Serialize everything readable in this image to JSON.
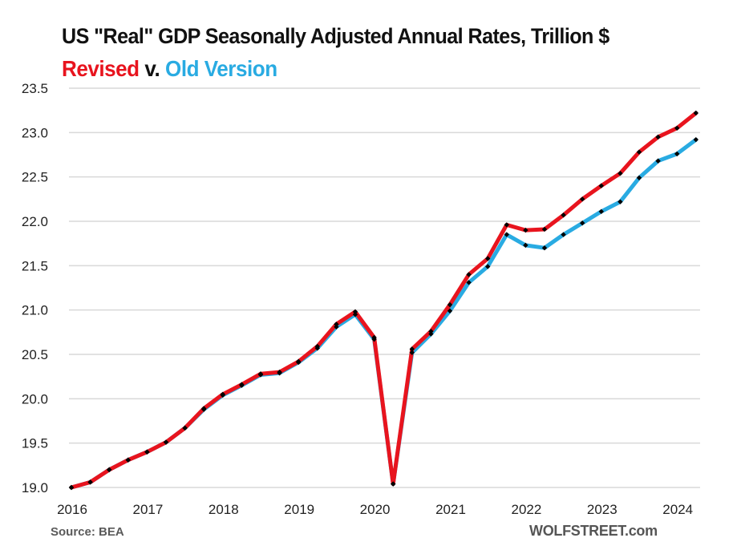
{
  "chart_data": {
    "type": "line",
    "title": "US \"Real\" GDP Seasonally Adjusted Annual Rates, Trillion $",
    "subtitle": {
      "revised": "Revised",
      "connector": "v.",
      "old": "Old Version"
    },
    "xlabel": "",
    "ylabel": "",
    "ylim": [
      19.0,
      23.5
    ],
    "yticks": [
      "23.5",
      "23.0",
      "22.5",
      "22.0",
      "21.5",
      "21.0",
      "20.5",
      "20.0",
      "19.5",
      "19.0"
    ],
    "ytick_values": [
      23.5,
      23.0,
      22.5,
      22.0,
      21.5,
      21.0,
      20.5,
      20.0,
      19.5,
      19.0
    ],
    "xticks": [
      "2016",
      "2017",
      "2018",
      "2019",
      "2020",
      "2021",
      "2022",
      "2023",
      "2024"
    ],
    "grid": true,
    "x": [
      "2016Q1",
      "2016Q2",
      "2016Q3",
      "2016Q4",
      "2017Q1",
      "2017Q2",
      "2017Q3",
      "2017Q4",
      "2018Q1",
      "2018Q2",
      "2018Q3",
      "2018Q4",
      "2019Q1",
      "2019Q2",
      "2019Q3",
      "2019Q4",
      "2020Q1",
      "2020Q2",
      "2020Q3",
      "2020Q4",
      "2021Q1",
      "2021Q2",
      "2021Q3",
      "2021Q4",
      "2022Q1",
      "2022Q2",
      "2022Q3",
      "2022Q4",
      "2023Q1",
      "2023Q2",
      "2023Q3",
      "2023Q4",
      "2024Q1",
      "2024Q2"
    ],
    "series": [
      {
        "name": "Old Version",
        "color": "#29ABE2",
        "values": [
          19.0,
          19.06,
          19.2,
          19.31,
          19.4,
          19.51,
          19.67,
          19.88,
          20.04,
          20.15,
          20.27,
          20.29,
          20.41,
          20.57,
          20.81,
          20.95,
          20.67,
          19.04,
          20.52,
          20.73,
          20.99,
          21.31,
          21.49,
          21.85,
          21.73,
          21.7,
          21.85,
          21.98,
          22.11,
          22.22,
          22.49,
          22.68,
          22.76,
          22.92
        ]
      },
      {
        "name": "Revised",
        "color": "#E8141E",
        "values": [
          19.0,
          19.06,
          19.2,
          19.31,
          19.4,
          19.51,
          19.67,
          19.89,
          20.05,
          20.16,
          20.28,
          20.3,
          20.42,
          20.59,
          20.84,
          20.98,
          20.69,
          19.04,
          20.56,
          20.76,
          21.06,
          21.4,
          21.58,
          21.96,
          21.9,
          21.91,
          22.07,
          22.25,
          22.4,
          22.54,
          22.78,
          22.95,
          23.05,
          23.22
        ]
      }
    ],
    "marker_color": "#000000",
    "source": "Source: BEA",
    "brand": "WOLFSTREET.com"
  }
}
